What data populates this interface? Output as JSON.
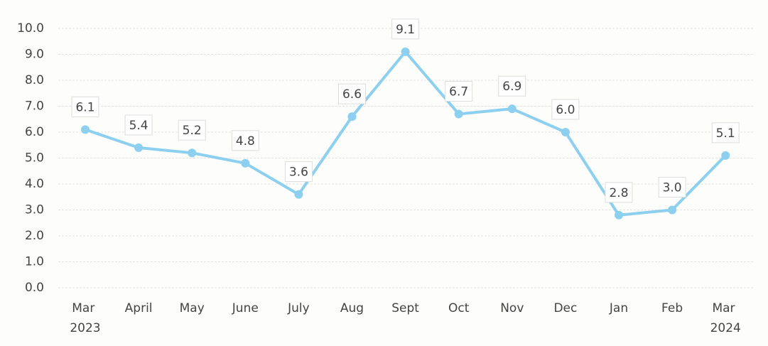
{
  "chart_data": {
    "type": "line",
    "categories": [
      "Mar 2023",
      "April",
      "May",
      "June",
      "July",
      "Aug",
      "Sept",
      "Oct",
      "Nov",
      "Dec",
      "Jan",
      "Feb",
      "Mar 2024"
    ],
    "series": [
      {
        "color": "#8ccfee",
        "values": [
          6.1,
          5.4,
          5.2,
          4.8,
          3.6,
          6.6,
          9.1,
          6.7,
          6.9,
          6.0,
          2.8,
          3.0,
          5.1
        ],
        "value_labels": [
          "6.1",
          "5.4",
          "5.2",
          "4.8",
          "3.6",
          "6.6",
          "9.1",
          "6.7",
          "6.9",
          "6.0",
          "2.8",
          "3.0",
          "5.1"
        ]
      }
    ],
    "ylim": [
      0,
      10
    ],
    "yticks": [
      {
        "value": 0,
        "label": "0.0"
      },
      {
        "value": 1,
        "label": "1.0"
      },
      {
        "value": 2,
        "label": "2.0"
      },
      {
        "value": 3,
        "label": "3.0"
      },
      {
        "value": 4,
        "label": "4.0"
      },
      {
        "value": 5,
        "label": "5.0"
      },
      {
        "value": 6,
        "label": "6.0"
      },
      {
        "value": 7,
        "label": "7.0"
      },
      {
        "value": 8,
        "label": "8.0"
      },
      {
        "value": 9,
        "label": "9.0"
      },
      {
        "value": 10,
        "label": "10.0"
      }
    ],
    "grid": true
  }
}
